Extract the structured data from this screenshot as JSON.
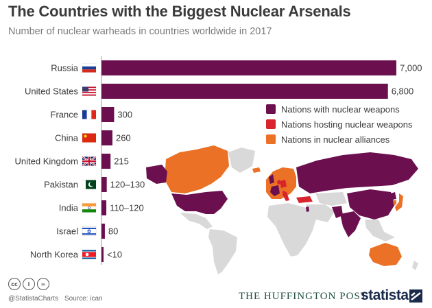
{
  "title": "The Countries with the Biggest Nuclear Arsenals",
  "subtitle": "Number of nuclear warheads in countries worldwide in 2017",
  "colors": {
    "nuclear": "#6b0f4f",
    "hosting": "#d9232d",
    "alliance": "#ea7125",
    "neutral": "#d9d9d9"
  },
  "legend": [
    {
      "label": "Nations with nuclear weapons",
      "color": "#6b0f4f"
    },
    {
      "label": "Nations hosting nuclear weapons",
      "color": "#d9232d"
    },
    {
      "label": "Nations in nuclear alliances",
      "color": "#ea7125"
    }
  ],
  "chart_data": {
    "type": "bar",
    "orientation": "horizontal",
    "categories": [
      "Russia",
      "United States",
      "France",
      "China",
      "United Kingdom",
      "Pakistan",
      "India",
      "Israel",
      "North Korea"
    ],
    "values": [
      7000,
      6800,
      300,
      260,
      215,
      125,
      115,
      80,
      9
    ],
    "value_labels": [
      "7,000",
      "6,800",
      "300",
      "260",
      "215",
      "120–130",
      "110–120",
      "80",
      "<10"
    ],
    "flags": [
      "russia-flag-icon",
      "usa-flag-icon",
      "france-flag-icon",
      "china-flag-icon",
      "uk-flag-icon",
      "pakistan-flag-icon",
      "india-flag-icon",
      "israel-flag-icon",
      "north-korea-flag-icon"
    ],
    "bar_color": "#6b0f4f",
    "xlim": [
      0,
      7000
    ]
  },
  "footer": {
    "handle": "@StatistaCharts",
    "source": "Source: ican",
    "partner": "THE HUFFINGTON POST",
    "brand": "statista",
    "license_icons": [
      "cc-icon",
      "by-icon",
      "nd-icon"
    ]
  }
}
